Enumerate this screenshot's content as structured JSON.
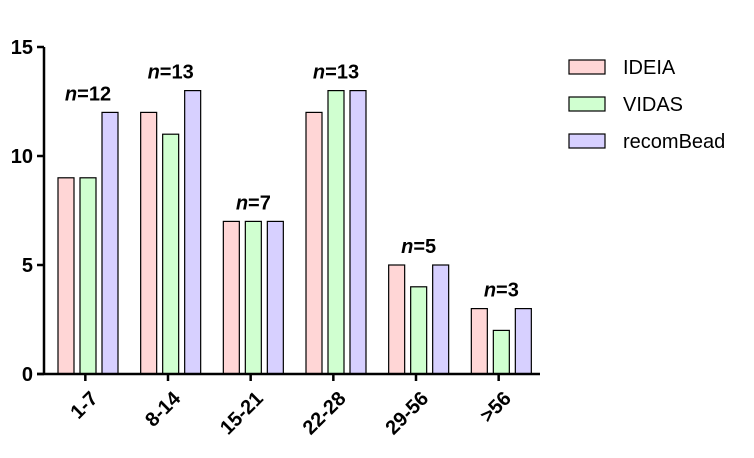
{
  "chart_data": {
    "type": "bar",
    "title": "",
    "xlabel": "",
    "ylabel": "",
    "categories": [
      "1-7",
      "8-14",
      "15-21",
      "22-28",
      "29-56",
      ">56"
    ],
    "series": [
      {
        "name": "IDEIA",
        "values": [
          9,
          12,
          7,
          12,
          5,
          3
        ],
        "color": "#ffd6d6"
      },
      {
        "name": "VIDAS",
        "values": [
          9,
          11,
          7,
          13,
          4,
          2
        ],
        "color": "#d0ffd0"
      },
      {
        "name": "recomBead",
        "values": [
          12,
          13,
          7,
          13,
          5,
          3
        ],
        "color": "#d7d0ff"
      }
    ],
    "annotations": [
      {
        "prefix": "n",
        "text": "=12"
      },
      {
        "prefix": "n",
        "text": "=13"
      },
      {
        "prefix": "n",
        "text": "=7"
      },
      {
        "prefix": "n",
        "text": "=13"
      },
      {
        "prefix": "n",
        "text": "=5"
      },
      {
        "prefix": "n",
        "text": "=3"
      }
    ],
    "yticks": [
      0,
      5,
      10,
      15
    ],
    "ylim": [
      0,
      15
    ],
    "grid": false,
    "legend_position": "top-right"
  }
}
